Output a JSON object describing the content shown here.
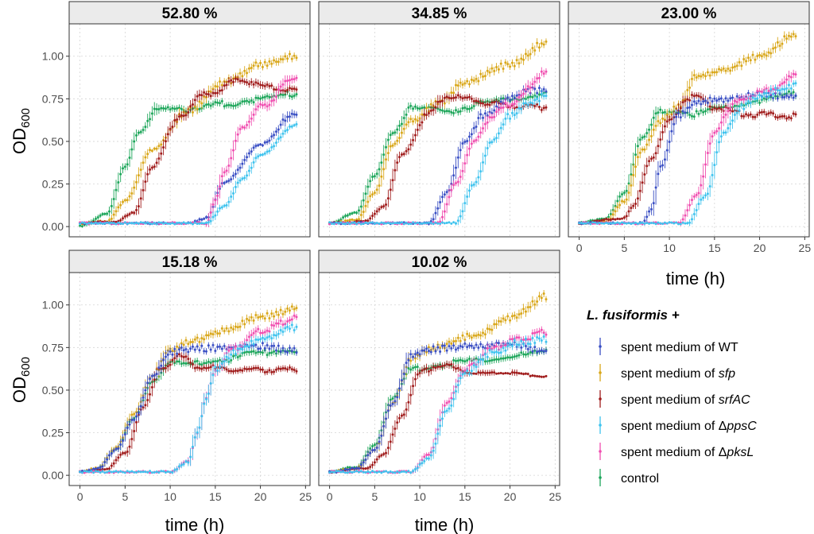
{
  "chart_data": {
    "type": "line",
    "panels": [
      {
        "title": "52.80 %"
      },
      {
        "title": "34.85 %"
      },
      {
        "title": "23.00 %"
      },
      {
        "title": "15.18 %"
      },
      {
        "title": "10.02 %"
      }
    ],
    "xlabel": "time (h)",
    "ylabel": {
      "main": "OD",
      "sub": "600"
    },
    "xlim": [
      -1.2,
      25.5
    ],
    "ylim": [
      -0.06,
      1.19
    ],
    "xticks": [
      0,
      5,
      10,
      15,
      20,
      25
    ],
    "yticks": [
      0.0,
      0.25,
      0.5,
      0.75,
      1.0
    ],
    "ytick_labels": [
      "0.00",
      "0.25",
      "0.50",
      "0.75",
      "1.00"
    ],
    "legend": {
      "title": "L. fusiformis +",
      "entries": [
        {
          "key": "wt",
          "prefix": "spent medium of ",
          "name": "WT",
          "italic": false
        },
        {
          "key": "sfp",
          "prefix": "spent medium of ",
          "name": "sfp",
          "italic": true
        },
        {
          "key": "srfac",
          "prefix": "spent medium of ",
          "name": "srfAC",
          "italic": true
        },
        {
          "key": "ppsc",
          "prefix": "spent medium of Δ",
          "name": "ppsC",
          "italic": true
        },
        {
          "key": "pksl",
          "prefix": "spent medium of Δ",
          "name": "pksL",
          "italic": true
        },
        {
          "key": "control",
          "prefix": "",
          "name": "control",
          "italic": false
        }
      ]
    },
    "colors": {
      "wt": "#3A4FC4",
      "sfp": "#D9A71A",
      "srfac": "#A01C1C",
      "ppsc": "#3FC3EE",
      "pksl": "#F04FB0",
      "control": "#1DA65A",
      "strip_bg": "#EBEBEB",
      "grid": "#D4D4D4"
    },
    "series_keypoints": [
      {
        "panel": "52.80 %",
        "wt": {
          "x": [
            0,
            12,
            14,
            16,
            20,
            24
          ],
          "y": [
            0.02,
            0.02,
            0.05,
            0.26,
            0.48,
            0.67
          ]
        },
        "sfp": {
          "x": [
            0,
            3,
            5,
            8,
            12,
            16,
            20,
            24
          ],
          "y": [
            0.02,
            0.03,
            0.15,
            0.45,
            0.68,
            0.85,
            0.95,
            1.0
          ]
        },
        "srfac": {
          "x": [
            0,
            4,
            6,
            8,
            11,
            14,
            18,
            21,
            24
          ],
          "y": [
            0.02,
            0.03,
            0.08,
            0.35,
            0.65,
            0.78,
            0.86,
            0.82,
            0.8
          ]
        },
        "ppsc": {
          "x": [
            0,
            14,
            16,
            18,
            20,
            24
          ],
          "y": [
            0.02,
            0.02,
            0.12,
            0.28,
            0.42,
            0.6
          ]
        },
        "pksl": {
          "x": [
            0,
            14,
            15,
            16,
            18,
            20,
            24
          ],
          "y": [
            0.02,
            0.02,
            0.15,
            0.32,
            0.58,
            0.7,
            0.88
          ]
        },
        "control": {
          "x": [
            0,
            3,
            5,
            6.5,
            9,
            11,
            12,
            16,
            20,
            24
          ],
          "y": [
            0.0,
            0.08,
            0.35,
            0.55,
            0.71,
            0.7,
            0.68,
            0.72,
            0.75,
            0.78
          ]
        }
      },
      {
        "panel": "34.85 %",
        "wt": {
          "x": [
            0,
            11,
            13,
            15,
            17,
            20,
            22,
            24
          ],
          "y": [
            0.02,
            0.02,
            0.2,
            0.5,
            0.65,
            0.75,
            0.8,
            0.8
          ]
        },
        "sfp": {
          "x": [
            0,
            3,
            5,
            7,
            9,
            12,
            15,
            20,
            24
          ],
          "y": [
            0.02,
            0.04,
            0.2,
            0.48,
            0.62,
            0.72,
            0.85,
            0.95,
            1.08
          ]
        },
        "srfac": {
          "x": [
            0,
            4,
            6,
            8,
            11,
            13,
            15,
            18,
            24
          ],
          "y": [
            0.02,
            0.03,
            0.12,
            0.42,
            0.66,
            0.77,
            0.75,
            0.72,
            0.7
          ]
        },
        "ppsc": {
          "x": [
            0,
            14,
            16,
            18,
            20,
            22,
            24
          ],
          "y": [
            0.02,
            0.02,
            0.25,
            0.5,
            0.65,
            0.72,
            0.77
          ]
        },
        "pksl": {
          "x": [
            0,
            12,
            14,
            16,
            18,
            20,
            24
          ],
          "y": [
            0.02,
            0.02,
            0.25,
            0.5,
            0.65,
            0.72,
            0.9
          ]
        },
        "control": {
          "x": [
            0,
            3,
            5,
            7,
            9,
            11,
            13,
            17,
            21,
            24
          ],
          "y": [
            0.02,
            0.08,
            0.3,
            0.55,
            0.69,
            0.69,
            0.68,
            0.72,
            0.76,
            0.78
          ]
        }
      },
      {
        "panel": "23.00 %",
        "wt": {
          "x": [
            0,
            7,
            8,
            9,
            11,
            13,
            16,
            20,
            24
          ],
          "y": [
            0.02,
            0.02,
            0.1,
            0.35,
            0.65,
            0.73,
            0.75,
            0.77,
            0.76
          ]
        },
        "sfp": {
          "x": [
            0,
            3,
            5,
            7,
            9,
            11,
            13,
            16,
            20,
            24
          ],
          "y": [
            0.02,
            0.03,
            0.15,
            0.45,
            0.62,
            0.7,
            0.88,
            0.92,
            1.0,
            1.13
          ]
        },
        "srfac": {
          "x": [
            0,
            5,
            6,
            8,
            10,
            12,
            13,
            15,
            18,
            24
          ],
          "y": [
            0.02,
            0.05,
            0.12,
            0.4,
            0.62,
            0.75,
            0.76,
            0.7,
            0.66,
            0.65
          ]
        },
        "ppsc": {
          "x": [
            0,
            12,
            14,
            16,
            18,
            20,
            22,
            24
          ],
          "y": [
            0.02,
            0.02,
            0.18,
            0.55,
            0.7,
            0.76,
            0.8,
            0.83
          ]
        },
        "pksl": {
          "x": [
            0,
            11,
            13,
            15,
            17,
            20,
            22,
            24
          ],
          "y": [
            0.02,
            0.02,
            0.18,
            0.55,
            0.72,
            0.78,
            0.82,
            0.9
          ]
        },
        "control": {
          "x": [
            0,
            3,
            5,
            7,
            9,
            11,
            13,
            16,
            20,
            24
          ],
          "y": [
            0.02,
            0.05,
            0.2,
            0.52,
            0.67,
            0.68,
            0.66,
            0.7,
            0.74,
            0.78
          ]
        }
      },
      {
        "panel": "15.18 %",
        "wt": {
          "x": [
            0,
            2,
            4,
            6,
            8,
            10,
            12,
            16,
            20,
            24
          ],
          "y": [
            0.02,
            0.04,
            0.15,
            0.33,
            0.58,
            0.72,
            0.74,
            0.75,
            0.76,
            0.73
          ]
        },
        "sfp": {
          "x": [
            0,
            2,
            4,
            6,
            8,
            10,
            12,
            16,
            20,
            24
          ],
          "y": [
            0.02,
            0.04,
            0.16,
            0.36,
            0.58,
            0.74,
            0.78,
            0.85,
            0.93,
            0.98
          ]
        },
        "srfac": {
          "x": [
            0,
            3,
            5,
            7,
            9,
            11,
            13,
            16,
            20,
            24
          ],
          "y": [
            0.02,
            0.04,
            0.13,
            0.4,
            0.63,
            0.7,
            0.64,
            0.62,
            0.62,
            0.62
          ]
        },
        "ppsc": {
          "x": [
            0,
            10,
            12,
            13,
            14,
            15,
            17,
            20,
            24
          ],
          "y": [
            0.02,
            0.02,
            0.08,
            0.25,
            0.45,
            0.62,
            0.72,
            0.8,
            0.87
          ]
        },
        "pksl": {
          "x": [
            0,
            10,
            12,
            13,
            14,
            15,
            17,
            20,
            24
          ],
          "y": [
            0.02,
            0.02,
            0.08,
            0.25,
            0.45,
            0.62,
            0.74,
            0.85,
            0.92
          ]
        },
        "control": {
          "x": [
            0,
            2,
            4,
            6,
            8,
            10,
            12,
            16,
            20,
            24
          ],
          "y": [
            0.02,
            0.04,
            0.15,
            0.34,
            0.55,
            0.66,
            0.65,
            0.68,
            0.72,
            0.74
          ]
        }
      },
      {
        "panel": "10.02 %",
        "wt": {
          "x": [
            0,
            3,
            5,
            7,
            9,
            11,
            16,
            20,
            24
          ],
          "y": [
            0.02,
            0.04,
            0.15,
            0.42,
            0.7,
            0.74,
            0.76,
            0.77,
            0.73
          ]
        },
        "sfp": {
          "x": [
            0,
            3,
            5,
            7,
            9,
            11,
            16,
            20,
            24
          ],
          "y": [
            0.02,
            0.04,
            0.15,
            0.42,
            0.68,
            0.74,
            0.82,
            0.92,
            1.05
          ]
        },
        "srfac": {
          "x": [
            0,
            4,
            6,
            8,
            10,
            12,
            16,
            20,
            24
          ],
          "y": [
            0.02,
            0.04,
            0.12,
            0.35,
            0.6,
            0.65,
            0.6,
            0.6,
            0.58
          ]
        },
        "ppsc": {
          "x": [
            0,
            9,
            11,
            13,
            15,
            18,
            21,
            24
          ],
          "y": [
            0.02,
            0.02,
            0.1,
            0.38,
            0.6,
            0.72,
            0.78,
            0.8
          ]
        },
        "pksl": {
          "x": [
            0,
            9,
            11,
            13,
            15,
            18,
            21,
            24
          ],
          "y": [
            0.02,
            0.02,
            0.12,
            0.42,
            0.62,
            0.74,
            0.8,
            0.84
          ]
        },
        "control": {
          "x": [
            0,
            3,
            5,
            7,
            9,
            12,
            16,
            20,
            24
          ],
          "y": [
            0.02,
            0.05,
            0.18,
            0.45,
            0.62,
            0.65,
            0.67,
            0.7,
            0.72
          ]
        }
      }
    ]
  }
}
